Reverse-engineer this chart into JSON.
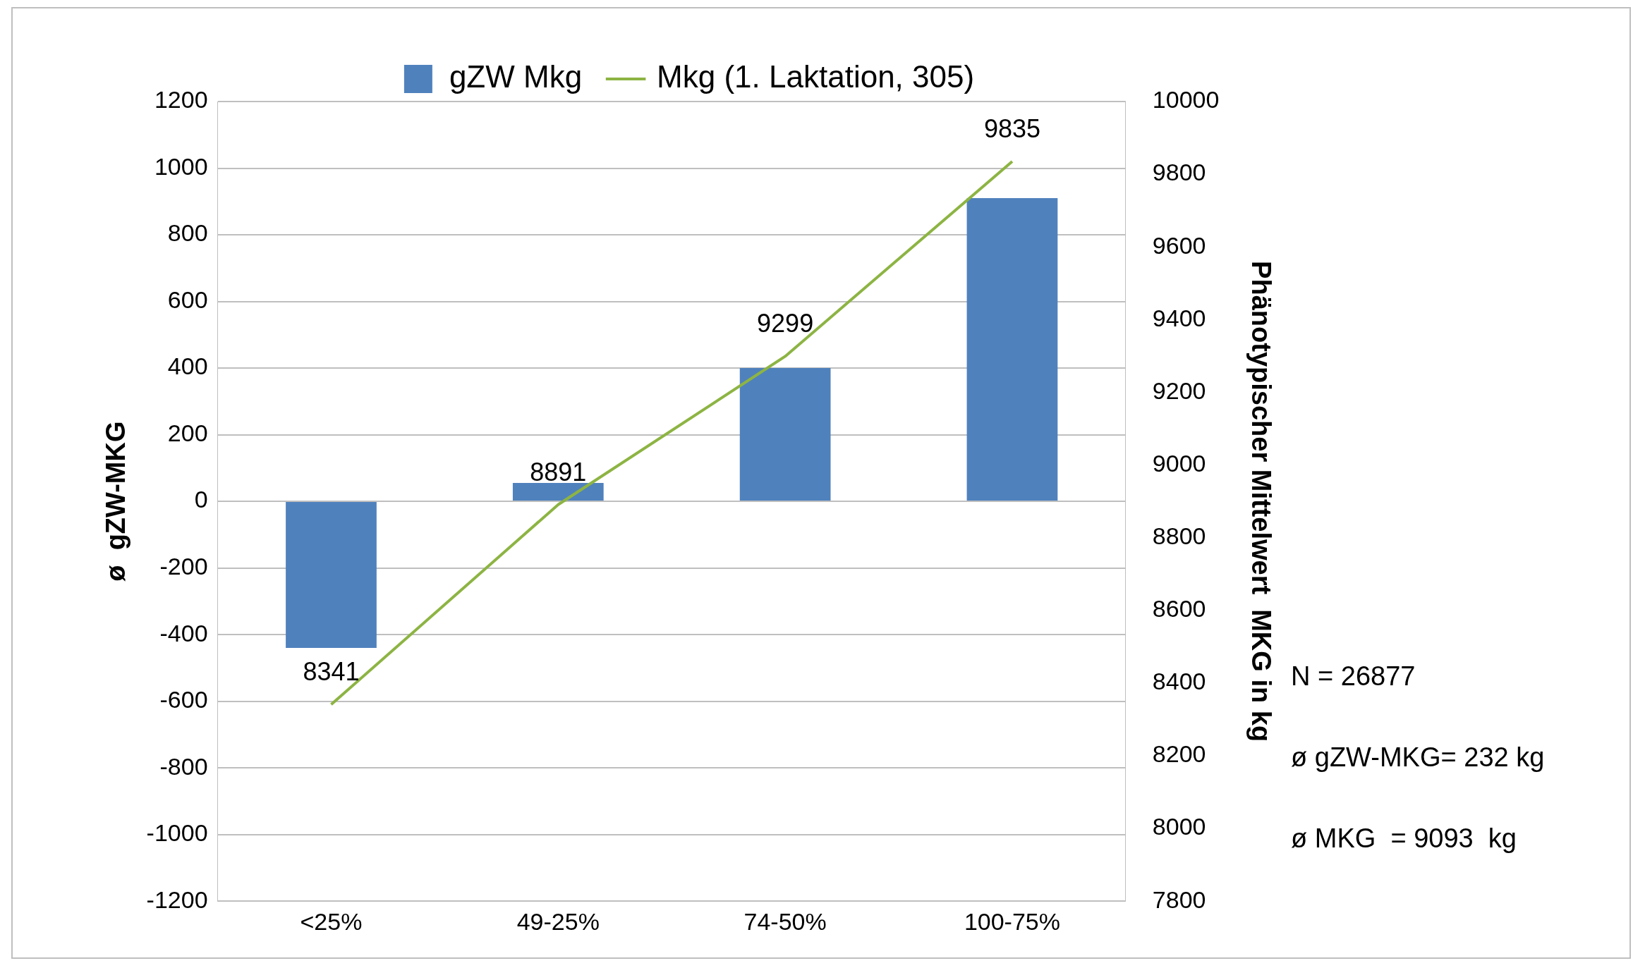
{
  "chart_data": {
    "type": "bar",
    "categories": [
      "<25%",
      "49-25%",
      "74-50%",
      "100-75%"
    ],
    "series": [
      {
        "name": "gZW Mkg",
        "color": "#4f81bd",
        "values": [
          -440,
          55,
          400,
          910
        ]
      },
      {
        "name": "Mkg (1. Laktation, 305)",
        "type": "line",
        "axis": "y2",
        "color": "#8db443",
        "values": [
          8341,
          8891,
          9299,
          9835
        ],
        "data_labels": true
      }
    ],
    "ylabel": "ø  gZW-MKG",
    "y2label": "Phänotypischer Mittelwert  MKG in kg",
    "ylim": [
      -1200,
      1200
    ],
    "yticks": [
      -1200,
      -1000,
      -800,
      -600,
      -400,
      -200,
      0,
      200,
      400,
      600,
      800,
      1000,
      1200
    ],
    "y2lim": [
      7800,
      10000
    ],
    "y2ticks": [
      7800,
      8000,
      8200,
      8400,
      8600,
      8800,
      9000,
      9200,
      9400,
      9600,
      9800,
      10000
    ],
    "grid": "y",
    "legend": "top",
    "marker": "none",
    "annotations": [
      "N = 26877",
      "ø gZW-MKG= 232 kg",
      "ø MKG  = 9093  kg"
    ]
  }
}
